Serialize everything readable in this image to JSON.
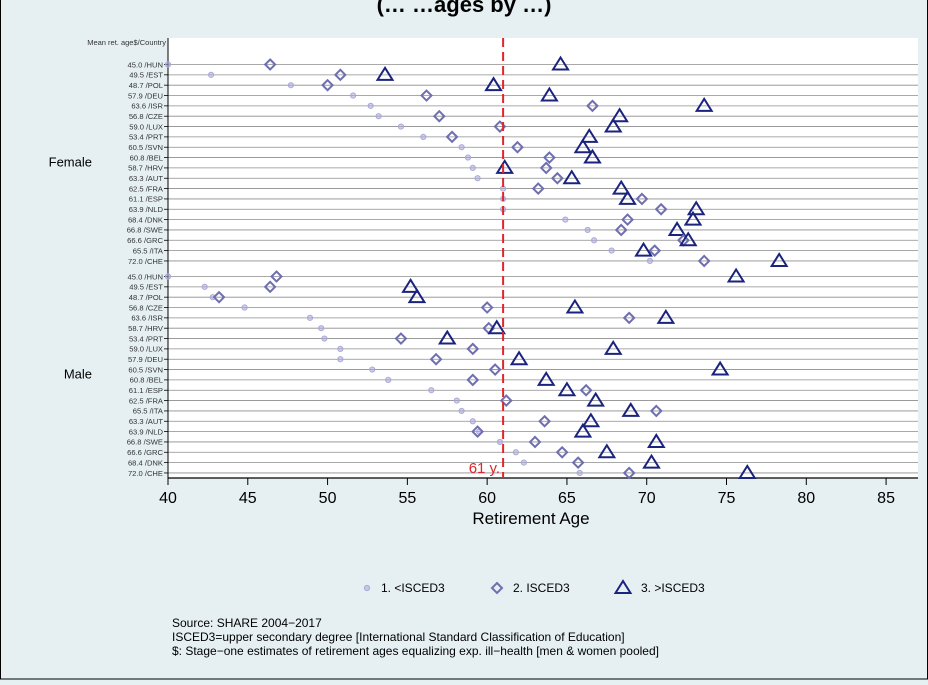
{
  "chart_data": {
    "type": "scatter",
    "title_fragment": "(… …ages by …)",
    "xlabel": "Retirement Age",
    "xlim": [
      40,
      87
    ],
    "xticks": [
      40,
      45,
      50,
      55,
      60,
      65,
      70,
      75,
      80,
      85
    ],
    "row_header": "Mean ret. age$/Country",
    "reference_line": {
      "x": 61,
      "label": "61 y."
    },
    "legend": [
      {
        "marker": "circle",
        "label": "1. <ISCED3"
      },
      {
        "marker": "diamond",
        "label": "2. ISCED3"
      },
      {
        "marker": "triangle",
        "label": "3. >ISCED3"
      }
    ],
    "groups": [
      {
        "name": "Female",
        "rows": [
          {
            "label": "45.0 /HUN",
            "low": 40.0,
            "mid": 46.4,
            "high": 64.6
          },
          {
            "label": "49.5 /EST",
            "low": 42.7,
            "mid": 50.8,
            "high": 53.6
          },
          {
            "label": "48.7 /POL",
            "low": 47.7,
            "mid": 50.0,
            "high": 60.4
          },
          {
            "label": "57.9 /DEU",
            "low": 51.6,
            "mid": 56.2,
            "high": 63.9
          },
          {
            "label": "63.6 /ISR",
            "low": 52.7,
            "mid": 66.6,
            "high": 73.6
          },
          {
            "label": "56.8 /CZE",
            "low": 53.2,
            "mid": 57.0,
            "high": 68.3
          },
          {
            "label": "59.0 /LUX",
            "low": 54.6,
            "mid": 60.8,
            "high": 67.9
          },
          {
            "label": "53.4 /PRT",
            "low": 56.0,
            "mid": 57.8,
            "high": 66.4
          },
          {
            "label": "60.5 /SVN",
            "low": 58.4,
            "mid": 61.9,
            "high": 66.0
          },
          {
            "label": "60.8 /BEL",
            "low": 58.8,
            "mid": 63.9,
            "high": 66.6
          },
          {
            "label": "58.7 /HRV",
            "low": 59.1,
            "mid": 63.7,
            "high": 61.1
          },
          {
            "label": "63.3 /AUT",
            "low": 59.4,
            "mid": 64.4,
            "high": 65.3
          },
          {
            "label": "62.5 /FRA",
            "low": 61.0,
            "mid": 63.2,
            "high": 68.4
          },
          {
            "label": "61.1 /ESP",
            "low": 61.0,
            "mid": 69.7,
            "high": 68.8
          },
          {
            "label": "63.9 /NLD",
            "low": 61.0,
            "mid": 70.9,
            "high": 73.1
          },
          {
            "label": "68.4 /DNK",
            "low": 64.9,
            "mid": 68.8,
            "high": 72.9
          },
          {
            "label": "66.8 /SWE",
            "low": 66.3,
            "mid": 68.4,
            "high": 71.9
          },
          {
            "label": "66.6 /GRC",
            "low": 66.7,
            "mid": 72.3,
            "high": 72.6
          },
          {
            "label": "65.5 /ITA",
            "low": 67.8,
            "mid": 70.5,
            "high": 69.8
          },
          {
            "label": "72.0 /CHE",
            "low": 70.2,
            "mid": 73.6,
            "high": 78.3
          }
        ]
      },
      {
        "name": "Male",
        "rows": [
          {
            "label": "45.0 /HUN",
            "low": 40.0,
            "mid": 46.8,
            "high": 75.6
          },
          {
            "label": "49.5 /EST",
            "low": 42.3,
            "mid": 46.4,
            "high": 55.2
          },
          {
            "label": "48.7 /POL",
            "low": 42.8,
            "mid": 43.2,
            "high": 55.6
          },
          {
            "label": "56.8 /CZE",
            "low": 44.8,
            "mid": 60.0,
            "high": 65.5
          },
          {
            "label": "63.6 /ISR",
            "low": 48.9,
            "mid": 68.9,
            "high": 71.2
          },
          {
            "label": "58.7 /HRV",
            "low": 49.6,
            "mid": 60.1,
            "high": 60.6
          },
          {
            "label": "53.4 /PRT",
            "low": 49.8,
            "mid": 54.6,
            "high": 57.5
          },
          {
            "label": "59.0 /LUX",
            "low": 50.8,
            "mid": 59.1,
            "high": 67.9
          },
          {
            "label": "57.9 /DEU",
            "low": 50.8,
            "mid": 56.8,
            "high": 62.0
          },
          {
            "label": "60.5 /SVN",
            "low": 52.8,
            "mid": 60.5,
            "high": 74.6
          },
          {
            "label": "60.8 /BEL",
            "low": 53.8,
            "mid": 59.1,
            "high": 63.7
          },
          {
            "label": "61.1 /ESP",
            "low": 56.5,
            "mid": 66.2,
            "high": 65.0
          },
          {
            "label": "62.5 /FRA",
            "low": 58.1,
            "mid": 61.2,
            "high": 66.8
          },
          {
            "label": "65.5 /ITA",
            "low": 58.4,
            "mid": 70.6,
            "high": 69.0
          },
          {
            "label": "63.3 /AUT",
            "low": 59.1,
            "mid": 63.6,
            "high": 66.5
          },
          {
            "label": "63.9 /NLD",
            "low": 59.5,
            "mid": 59.4,
            "high": 66.0
          },
          {
            "label": "66.8 /SWE",
            "low": 60.8,
            "mid": 63.0,
            "high": 70.6
          },
          {
            "label": "66.6 /GRC",
            "low": 61.8,
            "mid": 64.7,
            "high": 67.5
          },
          {
            "label": "68.4 /DNK",
            "low": 62.3,
            "mid": 65.7,
            "high": 70.3
          },
          {
            "label": "72.0 /CHE",
            "low": 65.8,
            "mid": 68.9,
            "high": 76.3
          }
        ]
      }
    ],
    "colors": {
      "low": "#a9a9d8",
      "mid": "#6f6fb0",
      "high": "#1a237e",
      "reference": "#e0262b",
      "background": "#e6f0f3"
    }
  },
  "notes": [
    "Source: SHARE 2004−2017",
    "ISCED3=upper secondary degree [International Standard Classification of Education]",
    "$: Stage−one estimates of retirement ages  equalizing exp. ill−health [men & women pooled]"
  ]
}
